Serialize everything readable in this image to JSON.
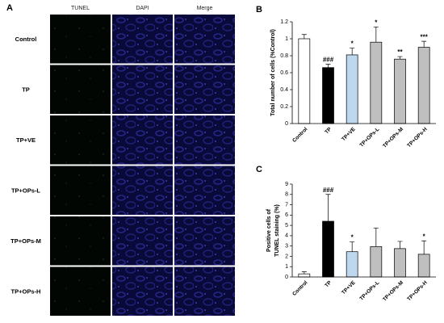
{
  "panel_a": {
    "letter": "A",
    "columns": [
      "TUNEL",
      "DAPI",
      "Merge"
    ],
    "rows": [
      "Control",
      "TP",
      "TP+VE",
      "TP+OPs-L",
      "TP+OPs-M",
      "TP+OPs-H"
    ]
  },
  "chart_data": [
    {
      "type": "bar",
      "letter": "B",
      "ylabel": [
        "Total number of cells (%Control)"
      ],
      "categories": [
        "Control",
        "TP",
        "TP+VE",
        "TP+OPs-L",
        "TP+OPs-M",
        "TP+OPs-H"
      ],
      "values": [
        1.0,
        0.66,
        0.81,
        0.96,
        0.76,
        0.9
      ],
      "errors": [
        0.05,
        0.04,
        0.08,
        0.18,
        0.03,
        0.07
      ],
      "annotations": [
        null,
        "###",
        "*",
        "*",
        "**",
        "***"
      ],
      "colors": [
        "#ffffff",
        "#000000",
        "#bdd7ee",
        "#bfbfbf",
        "#bfbfbf",
        "#bfbfbf"
      ],
      "ylim": [
        0,
        1.2
      ],
      "yticks": [
        0,
        0.2,
        0.4,
        0.6,
        0.8,
        1,
        1.2
      ]
    },
    {
      "type": "bar",
      "letter": "C",
      "ylabel": [
        "Positive cells of",
        "TUNEL staining (%)"
      ],
      "categories": [
        "Control",
        "TP",
        "TP+VE",
        "TP+OPs-L",
        "TP+OPs-M",
        "TP+OPs-H"
      ],
      "values": [
        0.3,
        5.4,
        2.45,
        2.95,
        2.75,
        2.2
      ],
      "errors": [
        0.2,
        2.6,
        0.95,
        1.8,
        0.7,
        1.3
      ],
      "annotations": [
        null,
        "###",
        "*",
        null,
        null,
        "*"
      ],
      "colors": [
        "#ffffff",
        "#000000",
        "#bdd7ee",
        "#bfbfbf",
        "#bfbfbf",
        "#bfbfbf"
      ],
      "ylim": [
        0,
        9
      ],
      "yticks": [
        0,
        1,
        2,
        3,
        4,
        5,
        6,
        7,
        8,
        9
      ]
    }
  ]
}
